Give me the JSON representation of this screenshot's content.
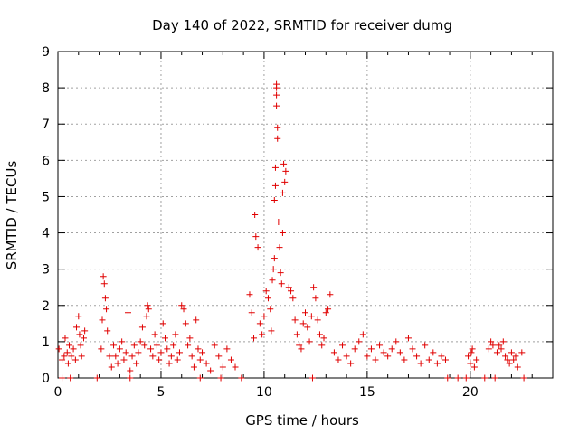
{
  "chart_data": {
    "type": "scatter",
    "title": "Day 140 of 2022, SRMTID for receiver dumg",
    "xlabel": "GPS time / hours",
    "ylabel": "SRMTID / TECUs",
    "xlim": [
      0,
      24
    ],
    "ylim": [
      0,
      9
    ],
    "xticks": [
      0,
      5,
      10,
      15,
      20
    ],
    "yticks": [
      0,
      1,
      2,
      3,
      4,
      5,
      6,
      7,
      8,
      9
    ],
    "grid": true,
    "marker": "+",
    "color": "#e00000",
    "series": [
      {
        "name": "SRMTID",
        "x": [
          0.05,
          0.2,
          0.3,
          0.35,
          0.45,
          0.5,
          0.55,
          0.65,
          0.75,
          0.85,
          0.9,
          1.0,
          1.05,
          1.1,
          1.15,
          1.25,
          1.3,
          0.2,
          0.6,
          2.1,
          2.15,
          2.2,
          2.25,
          2.3,
          2.35,
          2.4,
          2.5,
          2.6,
          2.7,
          2.8,
          2.9,
          3.0,
          3.1,
          3.2,
          3.3,
          3.4,
          3.5,
          3.6,
          3.7,
          3.8,
          3.9,
          4.0,
          4.1,
          4.2,
          4.3,
          4.35,
          4.4,
          4.5,
          4.6,
          4.7,
          4.8,
          4.9,
          5.0,
          5.1,
          5.2,
          5.3,
          5.4,
          5.5,
          5.6,
          5.7,
          5.8,
          5.9,
          6.0,
          6.1,
          6.2,
          6.3,
          6.4,
          6.5,
          6.6,
          6.7,
          6.8,
          6.9,
          7.0,
          7.2,
          7.4,
          7.6,
          7.8,
          8.0,
          8.2,
          8.4,
          8.6,
          9.3,
          9.4,
          9.5,
          9.55,
          9.6,
          9.7,
          9.8,
          9.9,
          10.0,
          10.1,
          10.2,
          10.3,
          10.35,
          10.4,
          10.45,
          10.5,
          10.5,
          10.55,
          10.55,
          10.6,
          10.6,
          10.6,
          10.6,
          10.65,
          10.65,
          10.7,
          10.75,
          10.8,
          10.85,
          10.9,
          10.9,
          10.95,
          11.0,
          11.05,
          11.2,
          11.3,
          11.4,
          11.5,
          11.6,
          11.7,
          11.8,
          11.9,
          12.0,
          12.1,
          12.2,
          12.3,
          12.4,
          12.5,
          12.6,
          12.7,
          12.8,
          12.9,
          13.0,
          13.1,
          13.2,
          13.4,
          13.6,
          13.8,
          14.0,
          14.2,
          14.4,
          14.6,
          14.8,
          15.0,
          15.2,
          15.4,
          15.6,
          15.8,
          16.0,
          16.2,
          16.4,
          16.6,
          16.8,
          17.0,
          17.2,
          17.4,
          17.6,
          17.8,
          18.0,
          18.2,
          18.4,
          18.6,
          18.8,
          19.9,
          20.0,
          20.05,
          20.1,
          20.2,
          20.3,
          20.9,
          21.0,
          21.1,
          21.3,
          21.4,
          21.5,
          21.6,
          21.7,
          21.8,
          21.9,
          22.0,
          22.1,
          22.2,
          22.3,
          22.5,
          1.9,
          3.5,
          6.9,
          7.9,
          8.9,
          12.35,
          18.9,
          19.4,
          19.8,
          20.7,
          21.2,
          22.6
        ],
        "y": [
          0.8,
          0.5,
          0.6,
          1.1,
          0.7,
          0.4,
          0.9,
          0.6,
          0.8,
          0.5,
          1.4,
          1.7,
          1.2,
          0.9,
          0.6,
          1.1,
          1.3,
          0.0,
          0.0,
          0.8,
          1.6,
          2.8,
          2.6,
          2.2,
          1.9,
          1.3,
          0.6,
          0.3,
          0.9,
          0.6,
          0.4,
          0.8,
          1.0,
          0.5,
          0.7,
          1.8,
          0.2,
          0.6,
          0.9,
          0.4,
          0.7,
          1.0,
          1.4,
          0.9,
          1.7,
          2.0,
          1.9,
          0.8,
          0.6,
          1.2,
          0.9,
          0.5,
          0.7,
          1.5,
          1.1,
          0.8,
          0.4,
          0.6,
          0.9,
          1.2,
          0.5,
          0.7,
          2.0,
          1.9,
          1.5,
          0.9,
          1.1,
          0.6,
          0.3,
          1.6,
          0.8,
          0.5,
          0.7,
          0.4,
          0.2,
          0.9,
          0.6,
          0.3,
          0.8,
          0.5,
          0.3,
          2.3,
          1.8,
          1.1,
          4.5,
          3.9,
          3.6,
          1.5,
          1.2,
          1.7,
          2.4,
          2.2,
          1.9,
          1.3,
          2.7,
          3.0,
          3.3,
          4.9,
          5.3,
          5.8,
          7.5,
          7.8,
          8.0,
          8.1,
          6.6,
          6.9,
          4.3,
          3.6,
          2.9,
          2.6,
          4.0,
          5.1,
          5.9,
          5.4,
          5.7,
          2.5,
          2.4,
          2.2,
          1.6,
          1.2,
          0.9,
          0.8,
          1.5,
          1.8,
          1.4,
          1.0,
          1.7,
          2.5,
          2.2,
          1.6,
          1.2,
          0.9,
          1.1,
          1.8,
          1.9,
          2.3,
          0.7,
          0.5,
          0.9,
          0.6,
          0.4,
          0.8,
          1.0,
          1.2,
          0.6,
          0.8,
          0.5,
          0.9,
          0.7,
          0.6,
          0.8,
          1.0,
          0.7,
          0.5,
          1.1,
          0.8,
          0.6,
          0.4,
          0.9,
          0.5,
          0.7,
          0.4,
          0.6,
          0.5,
          0.6,
          0.4,
          0.7,
          0.8,
          0.3,
          0.5,
          0.8,
          1.0,
          0.9,
          0.7,
          0.9,
          0.8,
          1.0,
          0.6,
          0.5,
          0.4,
          0.7,
          0.5,
          0.6,
          0.3,
          0.7,
          0.0,
          0.0,
          0.0,
          0.0,
          0.0,
          0.0,
          0.0,
          0.0,
          0.0,
          0.0,
          0.0,
          0.0
        ]
      }
    ]
  }
}
